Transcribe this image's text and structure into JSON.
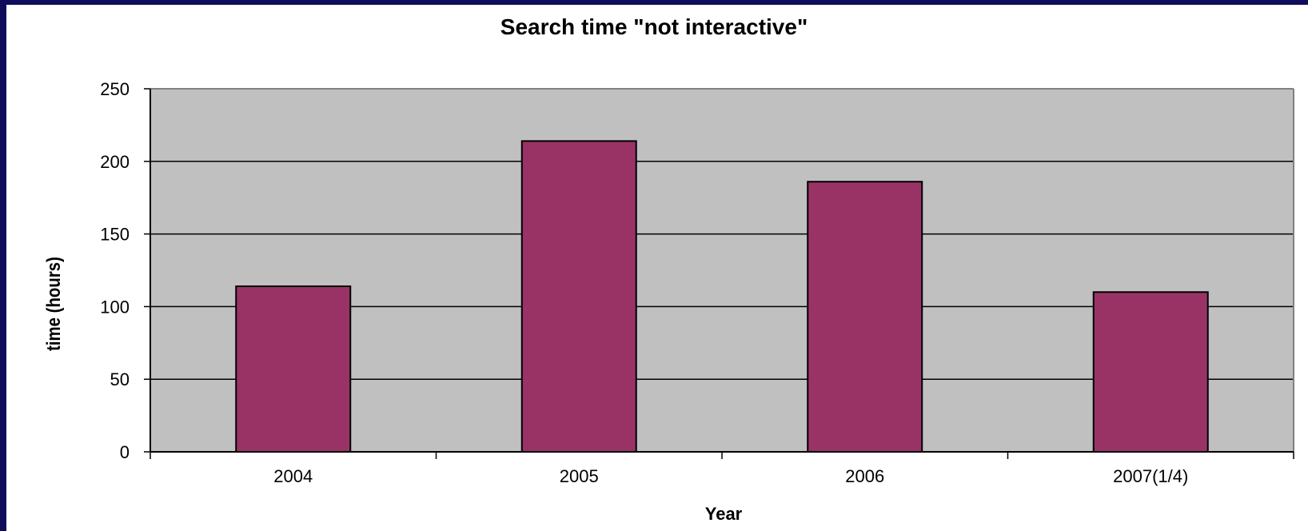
{
  "chart_data": {
    "type": "bar",
    "title": "Search time \"not interactive\"",
    "xlabel": "Year",
    "ylabel": "time (hours)",
    "categories": [
      "2004",
      "2005",
      "2006",
      "2007(1/4)"
    ],
    "values": [
      114,
      214,
      186,
      110
    ],
    "ylim": [
      0,
      250
    ],
    "yticks": [
      0,
      50,
      100,
      150,
      200,
      250
    ],
    "grid": true,
    "legend": "none",
    "colors": {
      "bar": "#993366",
      "plot_background": "#c0c0c0",
      "page_background": "#ffffff",
      "border": "#0f0c5c"
    }
  }
}
